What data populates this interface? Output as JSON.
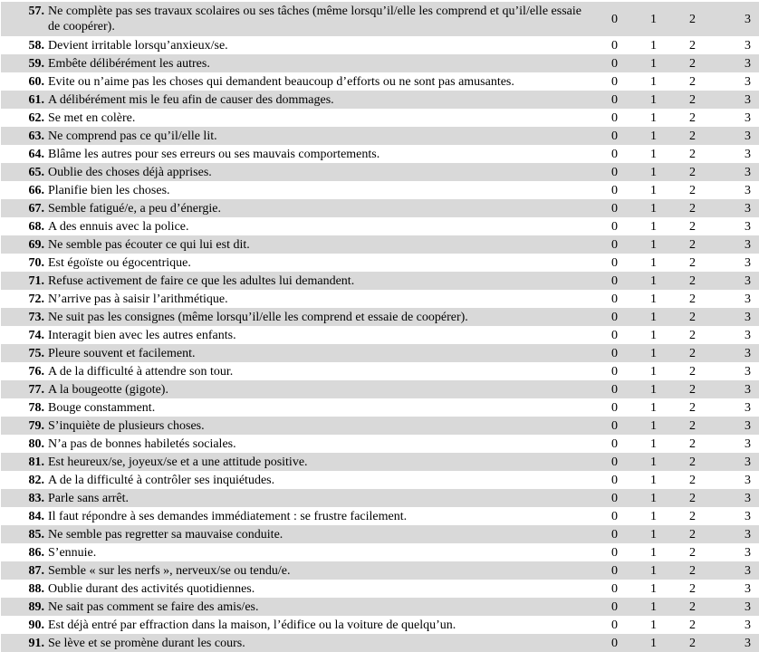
{
  "scale_values": [
    "0",
    "1",
    "2",
    "3"
  ],
  "items": [
    {
      "number": "57.",
      "text": "Ne complète pas ses travaux scolaires ou ses tâches (même lorsqu’il/elle les comprend et qu’il/elle essaie de coopérer)."
    },
    {
      "number": "58.",
      "text": "Devient irritable lorsqu’anxieux/se."
    },
    {
      "number": "59.",
      "text": "Embête délibérément les autres."
    },
    {
      "number": "60.",
      "text": "Evite ou n’aime pas les choses qui demandent beaucoup d’efforts ou ne sont pas amusantes."
    },
    {
      "number": "61.",
      "text": "A délibérément mis le feu afin de causer des dommages."
    },
    {
      "number": "62.",
      "text": "Se met en colère."
    },
    {
      "number": "63.",
      "text": "Ne comprend pas ce qu’il/elle lit."
    },
    {
      "number": "64.",
      "text": "Blâme les autres pour ses erreurs ou ses mauvais comportements."
    },
    {
      "number": "65.",
      "text": "Oublie des choses déjà apprises."
    },
    {
      "number": "66.",
      "text": "Planifie bien les choses."
    },
    {
      "number": "67.",
      "text": "Semble fatigué/e, a peu d’énergie."
    },
    {
      "number": "68.",
      "text": "A des ennuis avec la police."
    },
    {
      "number": "69.",
      "text": "Ne semble pas écouter ce qui lui est dit."
    },
    {
      "number": "70.",
      "text": "Est égoïste ou égocentrique."
    },
    {
      "number": "71.",
      "text": "Refuse activement de faire ce que les adultes lui demandent."
    },
    {
      "number": "72.",
      "text": "N’arrive pas à saisir l’arithmétique."
    },
    {
      "number": "73.",
      "text": "Ne suit pas les consignes (même lorsqu’il/elle les comprend et essaie de coopérer)."
    },
    {
      "number": "74.",
      "text": "Interagit bien avec les autres enfants."
    },
    {
      "number": "75.",
      "text": "Pleure souvent et facilement."
    },
    {
      "number": "76.",
      "text": "A de la difficulté à attendre son tour."
    },
    {
      "number": "77.",
      "text": "A la bougeotte (gigote)."
    },
    {
      "number": "78.",
      "text": "Bouge constamment."
    },
    {
      "number": "79.",
      "text": "S’inquiète de plusieurs choses."
    },
    {
      "number": "80.",
      "text": "N’a pas de bonnes habiletés sociales."
    },
    {
      "number": "81.",
      "text": "Est heureux/se, joyeux/se et a une attitude positive."
    },
    {
      "number": "82.",
      "text": "A de la difficulté à contrôler ses inquiétudes."
    },
    {
      "number": "83.",
      "text": "Parle sans arrêt."
    },
    {
      "number": "84.",
      "text": "Il faut répondre à ses demandes immédiatement : se frustre facilement."
    },
    {
      "number": "85.",
      "text": "Ne semble pas regretter sa mauvaise conduite."
    },
    {
      "number": "86.",
      "text": "S’ennuie."
    },
    {
      "number": "87.",
      "text": "Semble « sur les nerfs », nerveux/se ou tendu/e."
    },
    {
      "number": "88.",
      "text": "Oublie durant des activités quotidiennes."
    },
    {
      "number": "89.",
      "text": "Ne sait pas comment se faire des amis/es."
    },
    {
      "number": "90.",
      "text": "Est déjà entré par effraction dans la maison, l’édifice ou la voiture de quelqu’un."
    },
    {
      "number": "91.",
      "text": "Se lève et se promène durant les cours."
    }
  ]
}
